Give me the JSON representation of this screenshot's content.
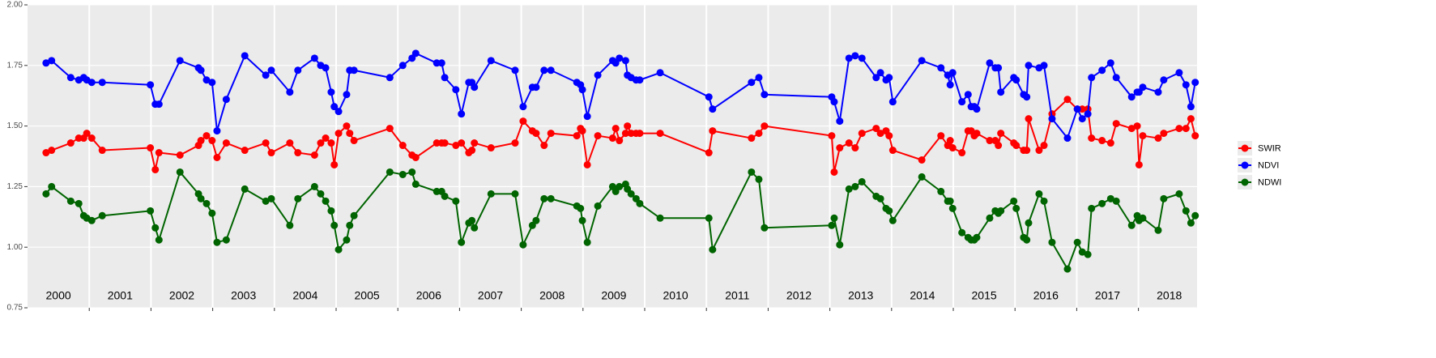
{
  "chart_data": {
    "type": "line",
    "xlim": [
      2000,
      2018.95
    ],
    "ylim": [
      0.75,
      2.0
    ],
    "yticks": [
      {
        "value": 2.0,
        "label": "2.00"
      },
      {
        "value": 1.75,
        "label": "1.75"
      },
      {
        "value": 1.5,
        "label": "1.50"
      },
      {
        "value": 1.25,
        "label": "1.25"
      },
      {
        "value": 1.0,
        "label": "1.00"
      },
      {
        "value": 0.75,
        "label": "0.75"
      }
    ],
    "year_labels": [
      "2000",
      "2001",
      "2002",
      "2003",
      "2004",
      "2005",
      "2006",
      "2007",
      "2008",
      "2009",
      "2010",
      "2011",
      "2012",
      "2013",
      "2014",
      "2015",
      "2016",
      "2017",
      "2018"
    ],
    "grid": true,
    "legend": "right",
    "x": [
      2000.3,
      2000.39,
      2000.7,
      2000.83,
      2000.91,
      2000.96,
      2001.04,
      2001.21,
      2001.99,
      2002.07,
      2002.13,
      2002.47,
      2002.77,
      2002.81,
      2002.9,
      2002.99,
      2003.07,
      2003.22,
      2003.52,
      2003.86,
      2003.95,
      2004.25,
      2004.38,
      2004.65,
      2004.75,
      2004.83,
      2004.92,
      2004.97,
      2005.04,
      2005.17,
      2005.22,
      2005.29,
      2005.87,
      2006.08,
      2006.23,
      2006.29,
      2006.63,
      2006.71,
      2006.76,
      2006.94,
      2007.03,
      2007.15,
      2007.2,
      2007.24,
      2007.51,
      2007.9,
      2008.03,
      2008.18,
      2008.24,
      2008.37,
      2008.48,
      2008.9,
      2008.96,
      2008.99,
      2009.07,
      2009.24,
      2009.48,
      2009.53,
      2009.59,
      2009.69,
      2009.72,
      2009.78,
      2009.86,
      2009.92,
      2010.25,
      2011.04,
      2011.1,
      2011.73,
      2011.85,
      2011.94,
      2013.03,
      2013.07,
      2013.16,
      2013.31,
      2013.41,
      2013.52,
      2013.75,
      2013.82,
      2013.91,
      2013.96,
      2014.02,
      2014.49,
      2014.8,
      2014.91,
      2014.95,
      2014.99,
      2015.14,
      2015.24,
      2015.29,
      2015.34,
      2015.38,
      2015.59,
      2015.68,
      2015.73,
      2015.77,
      2015.98,
      2016.02,
      2016.14,
      2016.19,
      2016.22,
      2016.39,
      2016.47,
      2016.6,
      2016.85,
      2017.01,
      2017.09,
      2017.18,
      2017.24,
      2017.41,
      2017.55,
      2017.64,
      2017.89,
      2017.98,
      2018.01,
      2018.07,
      2018.32,
      2018.41,
      2018.66,
      2018.77,
      2018.85,
      2018.92
    ],
    "series": [
      {
        "name": "SWIR",
        "color": "#ff0000",
        "values": [
          1.39,
          1.4,
          1.43,
          1.45,
          1.45,
          1.47,
          1.45,
          1.4,
          1.41,
          1.32,
          1.39,
          1.38,
          1.42,
          1.44,
          1.46,
          1.44,
          1.37,
          1.43,
          1.4,
          1.43,
          1.39,
          1.43,
          1.39,
          1.38,
          1.43,
          1.45,
          1.43,
          1.34,
          1.47,
          1.5,
          1.47,
          1.44,
          1.49,
          1.42,
          1.38,
          1.37,
          1.43,
          1.43,
          1.43,
          1.42,
          1.43,
          1.39,
          1.4,
          1.43,
          1.41,
          1.43,
          1.52,
          1.48,
          1.47,
          1.42,
          1.47,
          1.46,
          1.49,
          1.48,
          1.34,
          1.46,
          1.45,
          1.49,
          1.44,
          1.47,
          1.5,
          1.47,
          1.47,
          1.47,
          1.47,
          1.39,
          1.48,
          1.45,
          1.47,
          1.5,
          1.46,
          1.31,
          1.41,
          1.43,
          1.41,
          1.47,
          1.49,
          1.47,
          1.48,
          1.46,
          1.4,
          1.36,
          1.46,
          1.42,
          1.44,
          1.41,
          1.39,
          1.48,
          1.48,
          1.46,
          1.47,
          1.44,
          1.44,
          1.42,
          1.47,
          1.43,
          1.42,
          1.4,
          1.4,
          1.53,
          1.4,
          1.42,
          1.55,
          1.61,
          1.57,
          1.57,
          1.57,
          1.45,
          1.44,
          1.43,
          1.51,
          1.49,
          1.5,
          1.34,
          1.46,
          1.45,
          1.47,
          1.49,
          1.49,
          1.53,
          1.46
        ]
      },
      {
        "name": "NDVI",
        "color": "#0000ff",
        "values": [
          1.76,
          1.77,
          1.7,
          1.69,
          1.7,
          1.69,
          1.68,
          1.68,
          1.67,
          1.59,
          1.59,
          1.77,
          1.74,
          1.73,
          1.69,
          1.68,
          1.48,
          1.61,
          1.79,
          1.71,
          1.73,
          1.64,
          1.73,
          1.78,
          1.75,
          1.74,
          1.64,
          1.58,
          1.56,
          1.63,
          1.73,
          1.73,
          1.7,
          1.75,
          1.78,
          1.8,
          1.76,
          1.76,
          1.7,
          1.65,
          1.55,
          1.68,
          1.68,
          1.66,
          1.77,
          1.73,
          1.58,
          1.66,
          1.66,
          1.73,
          1.73,
          1.68,
          1.67,
          1.65,
          1.54,
          1.71,
          1.77,
          1.76,
          1.78,
          1.77,
          1.71,
          1.7,
          1.69,
          1.69,
          1.72,
          1.62,
          1.57,
          1.68,
          1.7,
          1.63,
          1.62,
          1.6,
          1.52,
          1.78,
          1.79,
          1.78,
          1.7,
          1.72,
          1.69,
          1.7,
          1.6,
          1.77,
          1.74,
          1.71,
          1.67,
          1.72,
          1.6,
          1.63,
          1.58,
          1.58,
          1.57,
          1.76,
          1.74,
          1.74,
          1.64,
          1.7,
          1.69,
          1.63,
          1.62,
          1.75,
          1.74,
          1.75,
          1.53,
          1.45,
          1.57,
          1.53,
          1.55,
          1.7,
          1.73,
          1.76,
          1.7,
          1.62,
          1.64,
          1.64,
          1.66,
          1.64,
          1.69,
          1.72,
          1.67,
          1.58,
          1.68
        ]
      },
      {
        "name": "NDWI",
        "color": "#006400",
        "values": [
          1.22,
          1.25,
          1.19,
          1.18,
          1.13,
          1.12,
          1.11,
          1.13,
          1.15,
          1.08,
          1.03,
          1.31,
          1.22,
          1.2,
          1.18,
          1.14,
          1.02,
          1.03,
          1.24,
          1.19,
          1.2,
          1.09,
          1.2,
          1.25,
          1.22,
          1.19,
          1.15,
          1.09,
          0.99,
          1.03,
          1.09,
          1.13,
          1.31,
          1.3,
          1.31,
          1.26,
          1.23,
          1.23,
          1.21,
          1.19,
          1.02,
          1.1,
          1.11,
          1.08,
          1.22,
          1.22,
          1.01,
          1.09,
          1.11,
          1.2,
          1.2,
          1.17,
          1.16,
          1.11,
          1.02,
          1.17,
          1.25,
          1.23,
          1.25,
          1.26,
          1.24,
          1.22,
          1.2,
          1.18,
          1.12,
          1.12,
          0.99,
          1.31,
          1.28,
          1.08,
          1.09,
          1.12,
          1.01,
          1.24,
          1.25,
          1.27,
          1.21,
          1.2,
          1.16,
          1.15,
          1.11,
          1.29,
          1.23,
          1.19,
          1.19,
          1.16,
          1.06,
          1.04,
          1.03,
          1.03,
          1.04,
          1.12,
          1.15,
          1.14,
          1.15,
          1.19,
          1.16,
          1.04,
          1.03,
          1.1,
          1.22,
          1.19,
          1.02,
          0.91,
          1.02,
          0.98,
          0.97,
          1.16,
          1.18,
          1.2,
          1.19,
          1.09,
          1.13,
          1.11,
          1.12,
          1.07,
          1.2,
          1.22,
          1.15,
          1.1,
          1.13
        ]
      }
    ]
  }
}
